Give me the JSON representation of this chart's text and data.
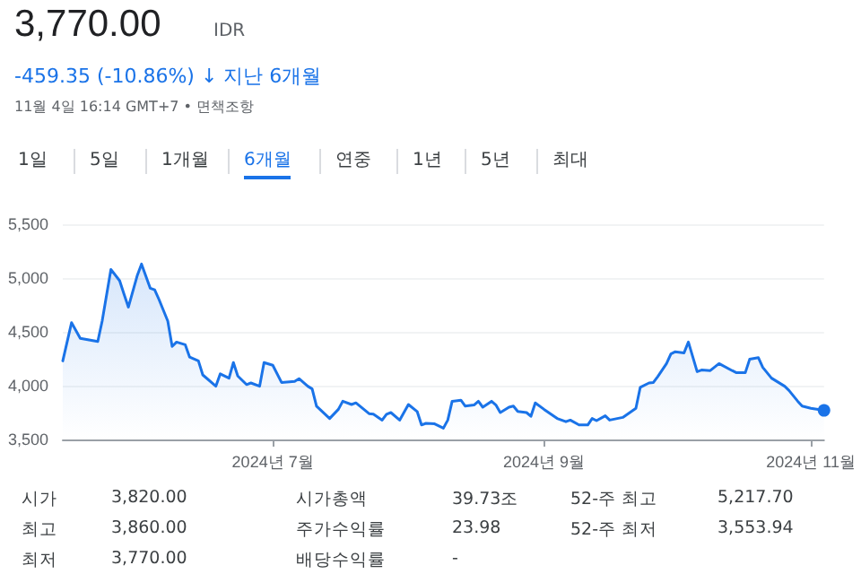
{
  "chart_data": {
    "type": "area",
    "title": "3,770.00",
    "subtitle": "IDR",
    "annotations": [
      "-459.35 (-10.86%) ↓ 지난 6개월",
      "11월 4일 16:14 GMT+7 • 면책조항",
      "1일",
      "5일",
      "1개월",
      "6개월",
      "연중",
      "1년",
      "5년",
      "최대",
      "시가",
      "3,820.00",
      "시가총액",
      "39.73조",
      "52-주 최고",
      "5,217.70",
      "최고",
      "3,860.00",
      "주가수익률",
      "23.98",
      "52-주 최저",
      "3,553.94",
      "최저",
      "3,770.00",
      "배당수익률",
      "-"
    ],
    "x": [
      "2024-05-14",
      "2024-05-16",
      "2024-05-18",
      "2024-05-22",
      "2024-05-23",
      "2024-05-25",
      "2024-05-27",
      "2024-05-28",
      "2024-05-29",
      "2024-05-31",
      "2024-06-01",
      "2024-06-03",
      "2024-06-04",
      "2024-06-05",
      "2024-06-07",
      "2024-06-08",
      "2024-06-09",
      "2024-06-11",
      "2024-06-12",
      "2024-06-14",
      "2024-06-15",
      "2024-06-18",
      "2024-06-19",
      "2024-06-21",
      "2024-06-22",
      "2024-06-23",
      "2024-06-25",
      "2024-06-26",
      "2024-06-28",
      "2024-06-29",
      "2024-07-01",
      "2024-07-03",
      "2024-07-06",
      "2024-07-07",
      "2024-07-09",
      "2024-07-10",
      "2024-07-11",
      "2024-07-14",
      "2024-07-16",
      "2024-07-17",
      "2024-07-19",
      "2024-07-20",
      "2024-07-23",
      "2024-07-24",
      "2024-07-26",
      "2024-07-27",
      "2024-07-28",
      "2024-07-30",
      "2024-08-01",
      "2024-08-03",
      "2024-08-04",
      "2024-08-05",
      "2024-08-07",
      "2024-08-09",
      "2024-08-10",
      "2024-08-11",
      "2024-08-13",
      "2024-08-14",
      "2024-08-16",
      "2024-08-17",
      "2024-08-18",
      "2024-08-20",
      "2024-08-21",
      "2024-08-22",
      "2024-08-24",
      "2024-08-25",
      "2024-08-26",
      "2024-08-28",
      "2024-08-29",
      "2024-08-30",
      "2024-09-01",
      "2024-09-04",
      "2024-09-06",
      "2024-09-07",
      "2024-09-09",
      "2024-09-11",
      "2024-09-12",
      "2024-09-13",
      "2024-09-15",
      "2024-09-16",
      "2024-09-19",
      "2024-09-22",
      "2024-09-23",
      "2024-09-25",
      "2024-09-26",
      "2024-09-27",
      "2024-09-29",
      "2024-09-30",
      "2024-10-01",
      "2024-10-03",
      "2024-10-04",
      "2024-10-06",
      "2024-10-07",
      "2024-10-09",
      "2024-10-11",
      "2024-10-14",
      "2024-10-15",
      "2024-10-17",
      "2024-10-18",
      "2024-10-20",
      "2024-10-21",
      "2024-10-23",
      "2024-10-26",
      "2024-10-27",
      "2024-10-29",
      "2024-10-30",
      "2024-11-01",
      "2024-11-04"
    ],
    "series": [
      {
        "color": "#1a73e8",
        "values": [
          4230,
          4585,
          4440,
          4410,
          4600,
          5080,
          4975,
          4850,
          4730,
          5020,
          5130,
          4905,
          4890,
          4800,
          4600,
          4365,
          4405,
          4380,
          4265,
          4230,
          4100,
          3995,
          4110,
          4070,
          4215,
          4090,
          4010,
          4025,
          3995,
          4215,
          4190,
          4030,
          4040,
          4065,
          3995,
          3970,
          3810,
          3695,
          3780,
          3855,
          3825,
          3840,
          3740,
          3735,
          3680,
          3735,
          3750,
          3680,
          3825,
          3760,
          3635,
          3650,
          3645,
          3605,
          3680,
          3855,
          3865,
          3810,
          3820,
          3855,
          3800,
          3855,
          3820,
          3750,
          3800,
          3810,
          3760,
          3750,
          3715,
          3840,
          3780,
          3695,
          3665,
          3680,
          3635,
          3635,
          3695,
          3675,
          3720,
          3680,
          3705,
          3790,
          3985,
          4025,
          4030,
          4085,
          4205,
          4295,
          4315,
          4305,
          4405,
          4130,
          4145,
          4140,
          4205,
          4140,
          4120,
          4120,
          4245,
          4260,
          4170,
          4070,
          3995,
          3955,
          3855,
          3810,
          3790,
          3770
        ]
      }
    ],
    "xlim": [
      "2024-05-14",
      "2024-11-04"
    ],
    "xticks": [
      {
        "value": "2024-07-01",
        "label": "2024년 7월"
      },
      {
        "value": "2024-09-01",
        "label": "2024년 9월"
      },
      {
        "value": "2024-11-01",
        "label": "2024년 11월"
      }
    ],
    "ylim": [
      3500,
      5500
    ],
    "yticks": [
      {
        "value": 3500,
        "label": "3,500"
      },
      {
        "value": 4000,
        "label": "4,000"
      },
      {
        "value": 4500,
        "label": "4,500"
      },
      {
        "value": 5000,
        "label": "5,000"
      },
      {
        "value": 5500,
        "label": "5,500"
      }
    ],
    "grid": "y",
    "marker": "none",
    "line_style": "solid"
  }
}
